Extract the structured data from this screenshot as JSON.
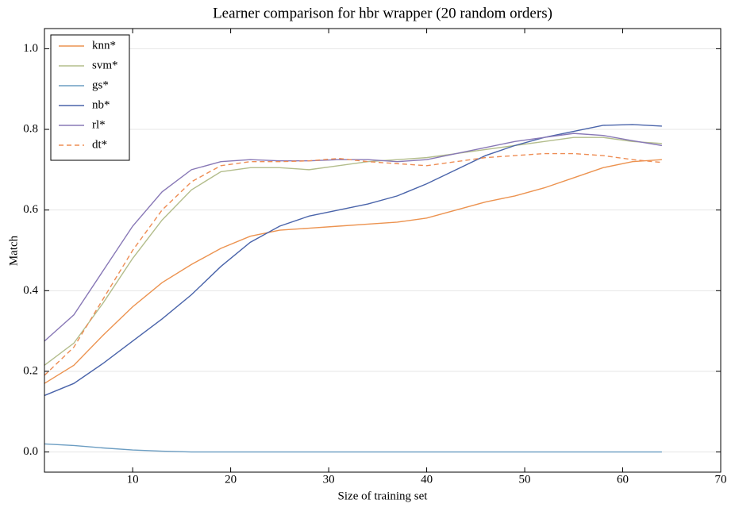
{
  "chart_data": {
    "type": "line",
    "title": "Learner comparison for hbr wrapper (20 random orders)",
    "x_label": "Size of training set",
    "y_label": "Match",
    "x": [
      1,
      4,
      7,
      10,
      13,
      16,
      19,
      22,
      25,
      28,
      31,
      34,
      37,
      40,
      43,
      46,
      49,
      52,
      55,
      58,
      61,
      64
    ],
    "series": [
      {
        "name": "knn*",
        "color": "#ec9350",
        "linestyle": "solid",
        "values": [
          0.17,
          0.215,
          0.29,
          0.36,
          0.42,
          0.465,
          0.505,
          0.535,
          0.55,
          0.555,
          0.56,
          0.565,
          0.57,
          0.58,
          0.6,
          0.62,
          0.635,
          0.655,
          0.68,
          0.705,
          0.72,
          0.725
        ]
      },
      {
        "name": "svm*",
        "color": "#b3bd8c",
        "linestyle": "solid",
        "values": [
          0.215,
          0.27,
          0.37,
          0.48,
          0.575,
          0.65,
          0.695,
          0.705,
          0.705,
          0.7,
          0.71,
          0.72,
          0.725,
          0.73,
          0.74,
          0.75,
          0.76,
          0.77,
          0.78,
          0.78,
          0.77,
          0.765
        ]
      },
      {
        "name": "gs*",
        "color": "#6b9dc2",
        "linestyle": "solid",
        "values": [
          0.02,
          0.016,
          0.01,
          0.005,
          0.002,
          0,
          0,
          0,
          0,
          0,
          0,
          0,
          0,
          0,
          0,
          0,
          0,
          0,
          0,
          0,
          0,
          0
        ]
      },
      {
        "name": "nb*",
        "color": "#4a64aa",
        "linestyle": "solid",
        "values": [
          0.14,
          0.17,
          0.22,
          0.275,
          0.33,
          0.39,
          0.46,
          0.52,
          0.56,
          0.585,
          0.6,
          0.615,
          0.635,
          0.665,
          0.7,
          0.735,
          0.76,
          0.78,
          0.795,
          0.81,
          0.812,
          0.808
        ]
      },
      {
        "name": "rl*",
        "color": "#8878b6",
        "linestyle": "solid",
        "values": [
          0.275,
          0.34,
          0.45,
          0.56,
          0.645,
          0.7,
          0.72,
          0.725,
          0.722,
          0.722,
          0.725,
          0.725,
          0.72,
          0.725,
          0.74,
          0.755,
          0.77,
          0.78,
          0.79,
          0.785,
          0.772,
          0.76
        ]
      },
      {
        "name": "dt*",
        "color": "#ee8d54",
        "linestyle": "dashed",
        "values": [
          0.19,
          0.26,
          0.38,
          0.5,
          0.6,
          0.67,
          0.71,
          0.72,
          0.72,
          0.722,
          0.728,
          0.72,
          0.715,
          0.71,
          0.72,
          0.73,
          0.735,
          0.74,
          0.74,
          0.735,
          0.725,
          0.718
        ]
      }
    ],
    "xlim": [
      1,
      70
    ],
    "ylim": [
      -0.05,
      1.05
    ],
    "xticks": [
      10,
      20,
      30,
      40,
      50,
      60,
      70
    ],
    "yticks": [
      {
        "value": 0,
        "label": "0.0"
      },
      {
        "value": 0.2,
        "label": "0.2"
      },
      {
        "value": 0.4,
        "label": "0.4"
      },
      {
        "value": 0.6,
        "label": "0.6"
      },
      {
        "value": 0.8,
        "label": "0.8"
      },
      {
        "value": 1.0,
        "label": "1.0"
      }
    ],
    "grid": true,
    "legend": "upper-left"
  }
}
